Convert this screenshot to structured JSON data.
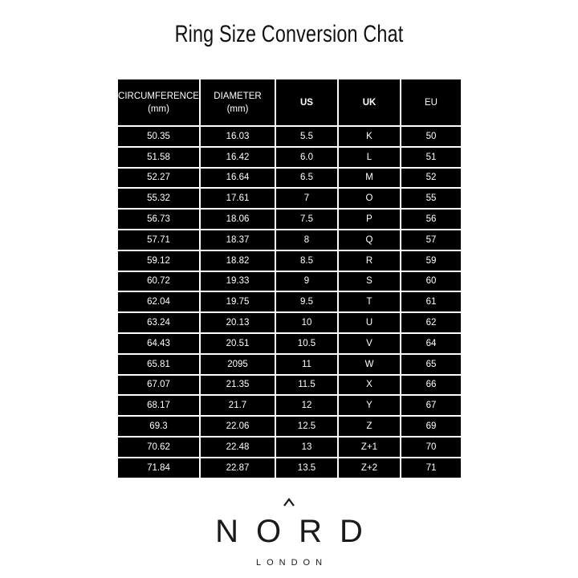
{
  "title": "Ring Size Conversion Chat",
  "table": {
    "headers": [
      {
        "line1": "CIRCUMFERENCE",
        "line2": "(mm)"
      },
      {
        "line1": "DIAMETER",
        "line2": "(mm)"
      },
      {
        "line1": "US",
        "line2": ""
      },
      {
        "line1": "UK",
        "line2": ""
      },
      {
        "line1": "EU",
        "line2": ""
      }
    ],
    "rows": [
      [
        "50.35",
        "16.03",
        "5.5",
        "K",
        "50"
      ],
      [
        "51.58",
        "16.42",
        "6.0",
        "L",
        "51"
      ],
      [
        "52.27",
        "16.64",
        "6.5",
        "M",
        "52"
      ],
      [
        "55.32",
        "17.61",
        "7",
        "O",
        "55"
      ],
      [
        "56.73",
        "18.06",
        "7.5",
        "P",
        "56"
      ],
      [
        "57.71",
        "18.37",
        "8",
        "Q",
        "57"
      ],
      [
        "59.12",
        "18.82",
        "8.5",
        "R",
        "59"
      ],
      [
        "60.72",
        "19.33",
        "9",
        "S",
        "60"
      ],
      [
        "62.04",
        "19.75",
        "9.5",
        "T",
        "61"
      ],
      [
        "63.24",
        "20.13",
        "10",
        "U",
        "62"
      ],
      [
        "64.43",
        "20.51",
        "10.5",
        "V",
        "64"
      ],
      [
        "65.81",
        "2095",
        "11",
        "W",
        "65"
      ],
      [
        "67.07",
        "21.35",
        "11.5",
        "X",
        "66"
      ],
      [
        "68.17",
        "21.7",
        "12",
        "Y",
        "67"
      ],
      [
        "69.3",
        "22.06",
        "12.5",
        "Z",
        "69"
      ],
      [
        "70.62",
        "22.48",
        "13",
        "Z+1",
        "70"
      ],
      [
        "71.84",
        "22.87",
        "13.5",
        "Z+2",
        "71"
      ]
    ]
  },
  "logo": {
    "name": "NORD",
    "sub": "LONDON"
  }
}
